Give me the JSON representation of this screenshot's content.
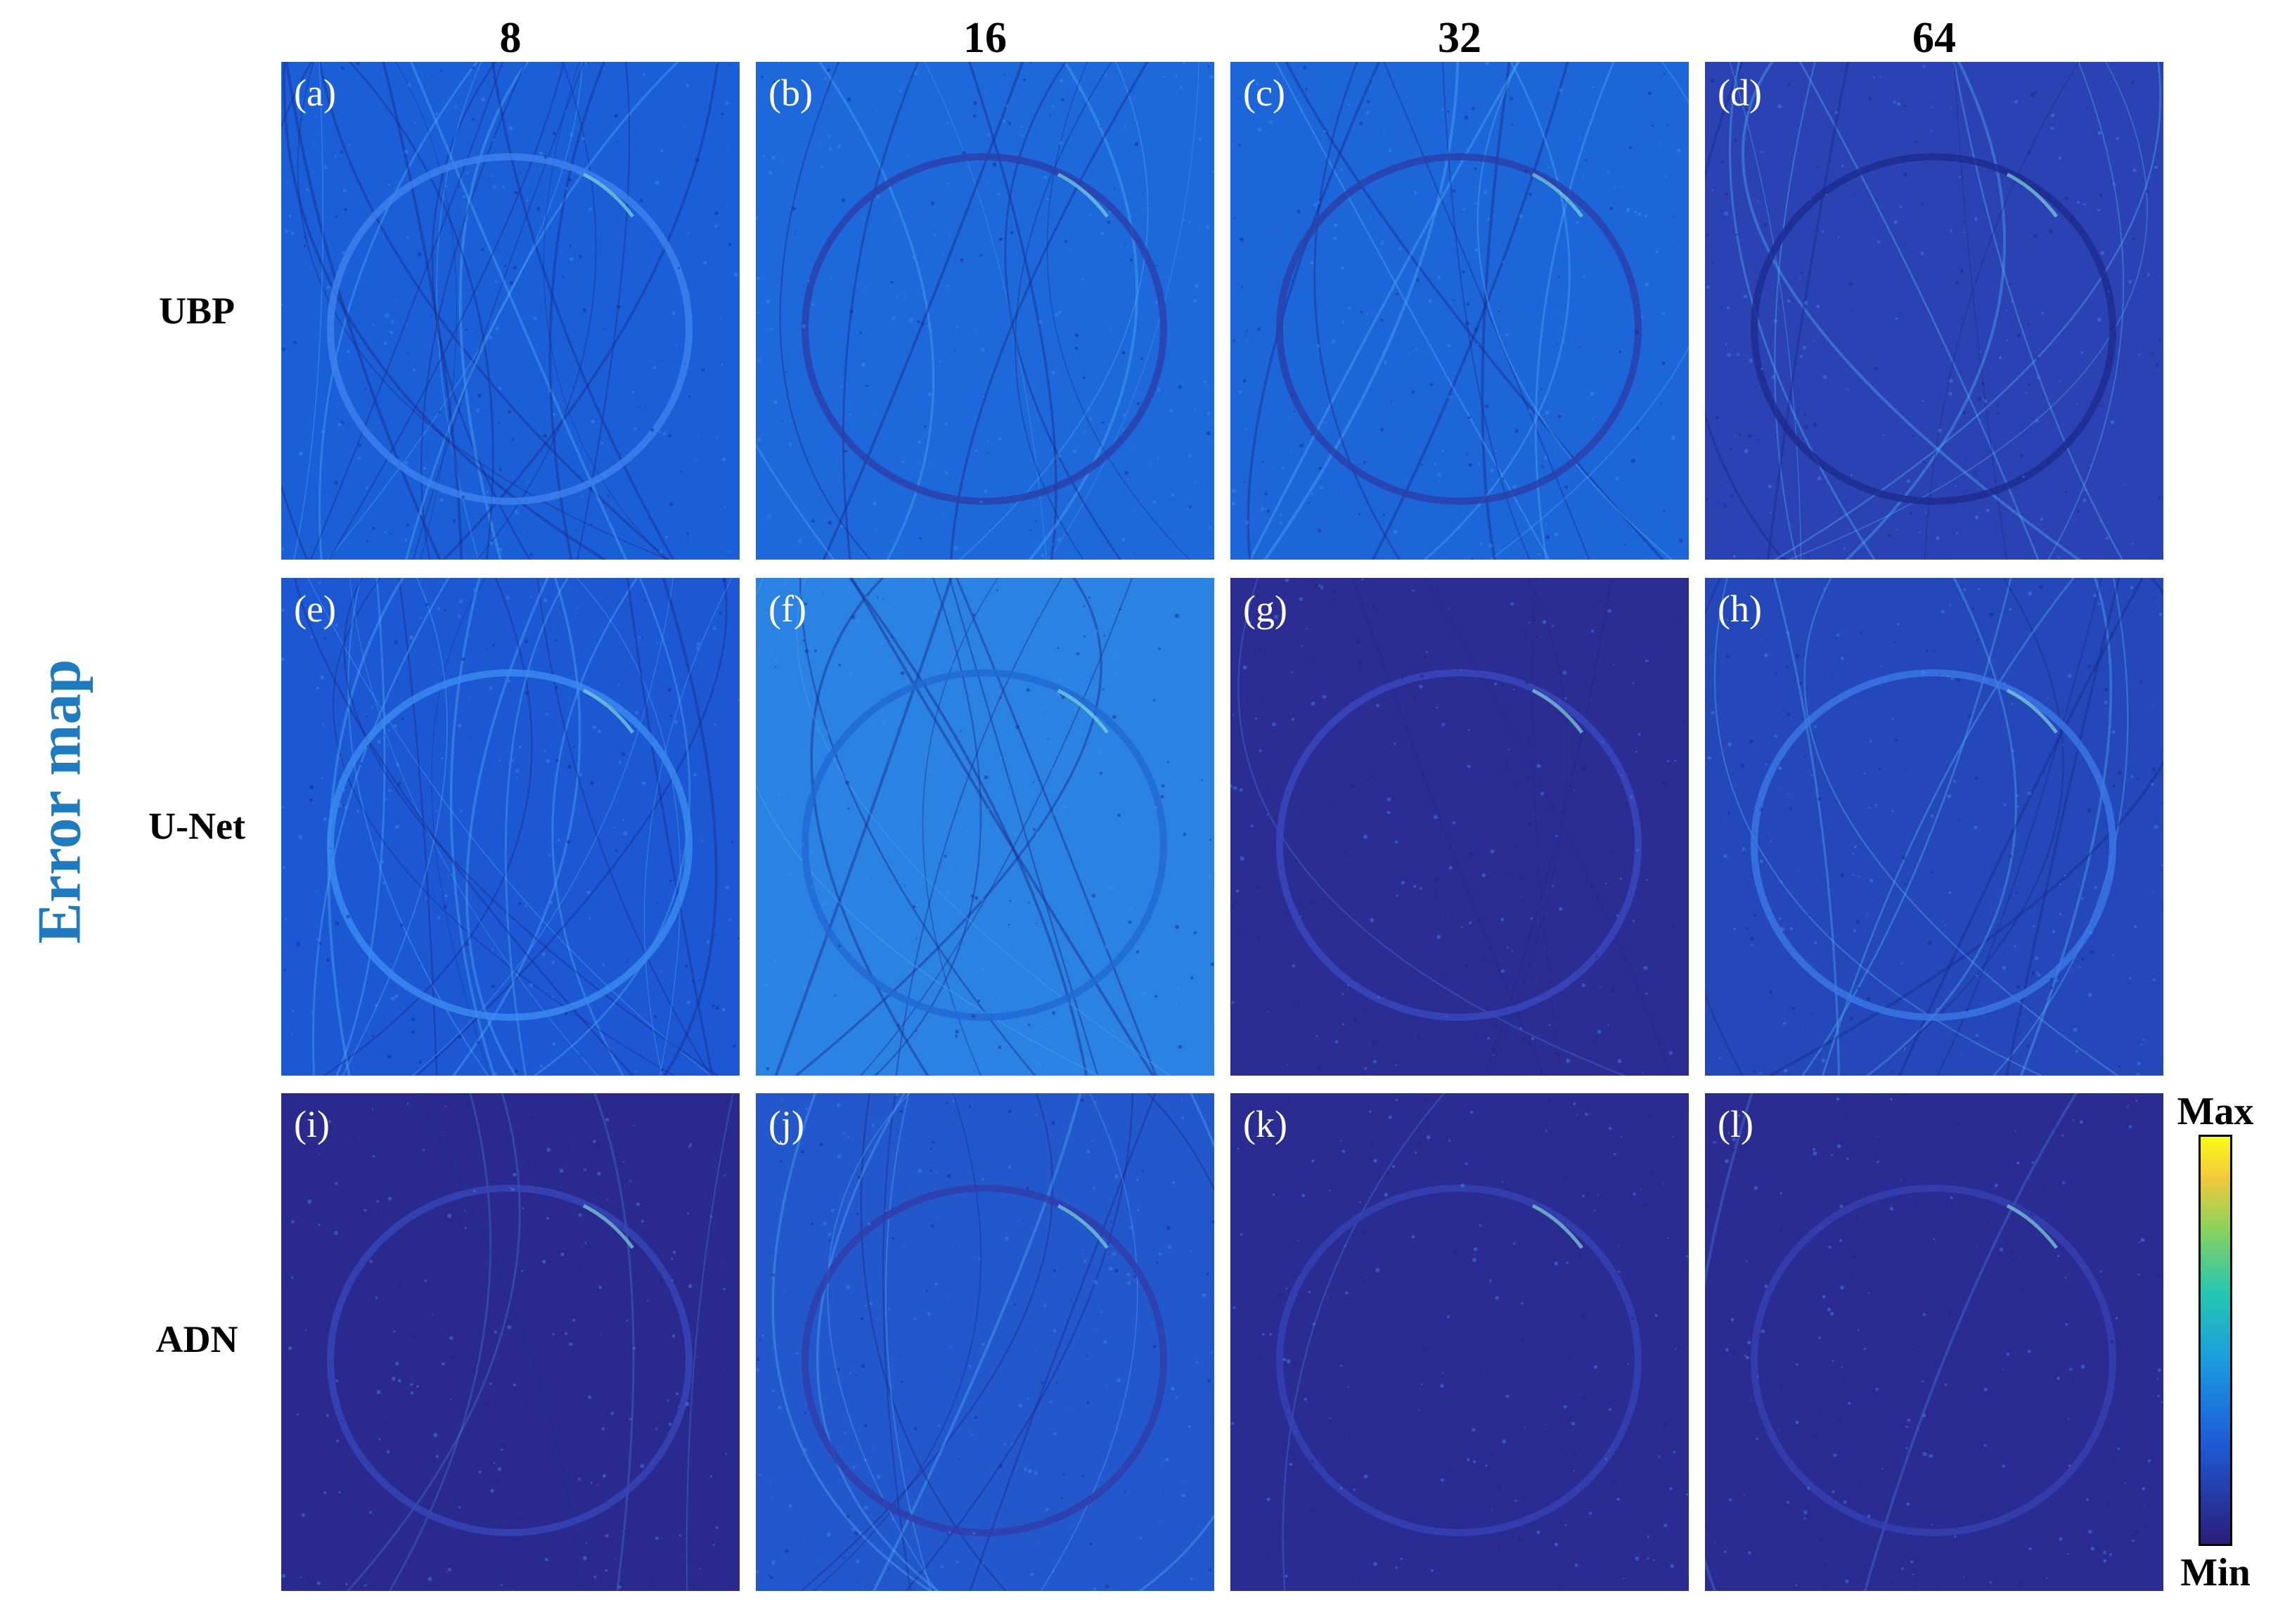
{
  "columns": [
    "8",
    "16",
    "32",
    "64"
  ],
  "rows": [
    "UBP",
    "U-Net",
    "ADN"
  ],
  "side_title": "Error map",
  "panels": [
    {
      "label": "(a)",
      "tone": "#1b5fd8",
      "artifacts": "high",
      "ring": "#3d82ee"
    },
    {
      "label": "(b)",
      "tone": "#1d69db",
      "artifacts": "medium",
      "ring": "#2c3fa8"
    },
    {
      "label": "(c)",
      "tone": "#1c66da",
      "artifacts": "medium",
      "ring": "#2c3fa8"
    },
    {
      "label": "(d)",
      "tone": "#2a42b3",
      "artifacts": "medium",
      "ring": "#1e2a8c"
    },
    {
      "label": "(e)",
      "tone": "#1c58d3",
      "artifacts": "high",
      "ring": "#3a8cf0"
    },
    {
      "label": "(f)",
      "tone": "#2a82e2",
      "artifacts": "medium",
      "ring": "#2168d6"
    },
    {
      "label": "(g)",
      "tone": "#2b2d93",
      "artifacts": "low",
      "ring": "#3848c0"
    },
    {
      "label": "(h)",
      "tone": "#2448b9",
      "artifacts": "medium",
      "ring": "#3a78e8"
    },
    {
      "label": "(i)",
      "tone": "#2a2a8e",
      "artifacts": "low",
      "ring": "#3646b8"
    },
    {
      "label": "(j)",
      "tone": "#2357cc",
      "artifacts": "medium",
      "ring": "#2f3ca8"
    },
    {
      "label": "(k)",
      "tone": "#2b2c92",
      "artifacts": "low",
      "ring": "#3544b4"
    },
    {
      "label": "(l)",
      "tone": "#2b2c92",
      "artifacts": "low",
      "ring": "#3442b2"
    }
  ],
  "colorbar": {
    "max_label": "Max",
    "min_label": "Min"
  }
}
